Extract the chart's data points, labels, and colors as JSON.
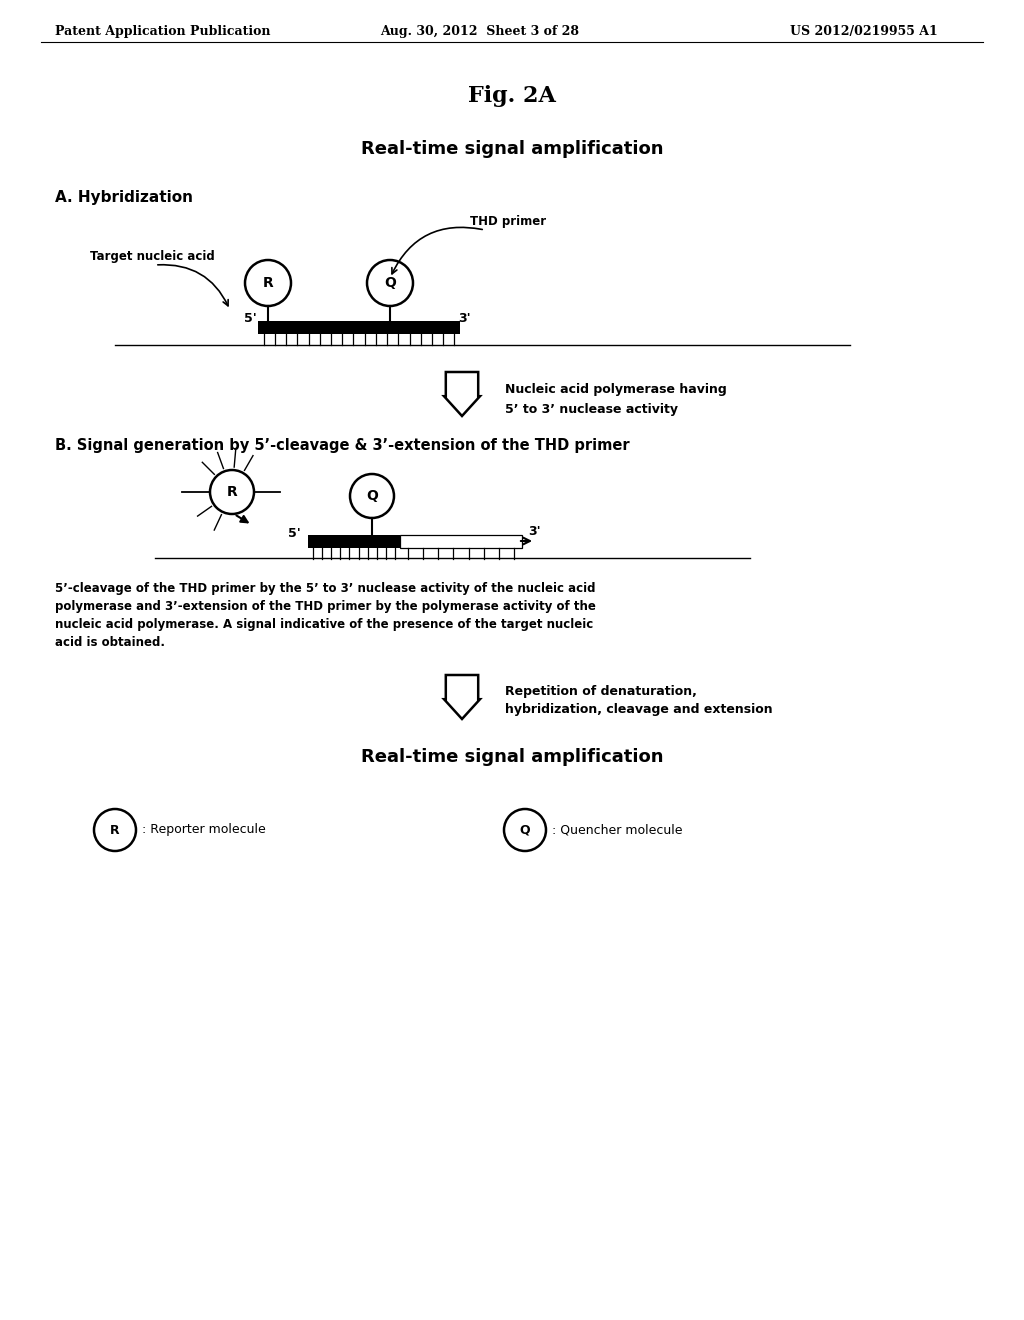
{
  "header_left": "Patent Application Publication",
  "header_mid": "Aug. 30, 2012  Sheet 3 of 28",
  "header_right": "US 2012/0219955 A1",
  "fig_title": "Fig. 2A",
  "subtitle": "Real-time signal amplification",
  "section_a": "A. Hybridization",
  "section_b": "B. Signal generation by 5’-cleavage & 3’-extension of the THD primer",
  "thd_primer_label": "THD primer",
  "target_nucleic_acid_label": "Target nucleic acid",
  "arrow1_text_line1": "Nucleic acid polymerase having",
  "arrow1_text_line2": "5’ to 3’ nuclease activity",
  "arrow2_text_line1": "Repetition of denaturation,",
  "arrow2_text_line2": "hybridization, cleavage and extension",
  "bottom_subtitle": "Real-time signal amplification",
  "legend_R": ": Reporter molecule",
  "legend_Q": ": Quencher molecule",
  "caption_line1": "5’-cleavage of the THD primer by the 5’ to 3’ nuclease activity of the nucleic acid",
  "caption_line2": "polymerase and 3’-extension of the THD primer by the polymerase activity of the",
  "caption_line3": "nucleic acid polymerase. A signal indicative of the presence of the target nucleic",
  "caption_line4": "acid is obtained.",
  "bg_color": "#ffffff",
  "text_color": "#000000"
}
